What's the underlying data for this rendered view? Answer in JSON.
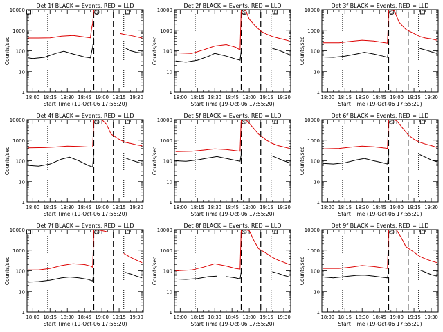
{
  "figure": {
    "colors": {
      "events": "#000000",
      "lld": "#dd0000",
      "axes": "#000000",
      "background": "#ffffff"
    }
  },
  "chart_data": [
    {
      "type": "line",
      "title": "Det 1f BLACK = Events, RED = LLD",
      "xlabel": "Start Time (19-Oct-06 17:55:20)",
      "ylabel": "Counts/sec",
      "yscale": "log",
      "ylim": [
        1,
        10000
      ],
      "xlim": [
        "17:55",
        "19:36"
      ],
      "x_ticks": [
        "18:00",
        "18:15",
        "18:30",
        "18:45",
        "19:00",
        "19:15",
        "19:30"
      ],
      "y_ticks": [
        "1",
        "10",
        "100",
        "1000",
        "10000"
      ],
      "markers_top": [
        "E",
        "S",
        "E"
      ],
      "dotted_vlines": [
        "18:13",
        "19:19"
      ],
      "dashed_vlines": [
        "18:53",
        "19:10"
      ],
      "series": [
        {
          "x": [
            "17:56",
            "18:05",
            "18:15",
            "18:25",
            "18:35",
            "18:45",
            "18:50",
            "18:51",
            "18:52",
            "18:53",
            "18:54",
            "19:03",
            "19:04",
            "19:07",
            "19:12",
            "19:16",
            "19:20",
            "19:25",
            "19:30",
            "19:35"
          ],
          "values": [
            420,
            420,
            430,
            520,
            560,
            470,
            430,
            1100,
            2200,
            9500,
            9500,
            null,
            null,
            null,
            null,
            700,
            620,
            560,
            480,
            420
          ]
        },
        {
          "x": [
            "17:56",
            "18:00",
            "18:10",
            "18:20",
            "18:27",
            "18:35",
            "18:45",
            "18:50",
            "18:51",
            "18:52",
            "18:53",
            "18:54",
            "18:56",
            "19:19",
            "19:20",
            "19:25",
            "19:30",
            "19:35"
          ],
          "values": [
            45,
            42,
            48,
            75,
            95,
            70,
            50,
            45,
            80,
            150,
            430,
            null,
            null,
            null,
            140,
            100,
            85,
            78
          ]
        }
      ]
    },
    {
      "type": "line",
      "title": "Det 2f BLACK = Events, RED = LLD",
      "xlabel": "Start Time (19-Oct-06 17:55:20)",
      "ylabel": "Counts/sec",
      "yscale": "log",
      "ylim": [
        1,
        10000
      ],
      "xlim": [
        "17:55",
        "19:36"
      ],
      "x_ticks": [
        "18:00",
        "18:15",
        "18:30",
        "18:45",
        "19:00",
        "19:15",
        "19:30"
      ],
      "y_ticks": [
        "1",
        "10",
        "100",
        "1000",
        "10000"
      ],
      "markers_top": [
        "S",
        "E"
      ],
      "dotted_vlines": [
        "18:13",
        "19:19"
      ],
      "dashed_vlines": [
        "18:53",
        "19:10"
      ],
      "series": [
        {
          "x": [
            "17:56",
            "18:10",
            "18:20",
            "18:30",
            "18:40",
            "18:48",
            "18:52",
            "18:53",
            "18:54",
            "18:57",
            "19:00",
            "19:05",
            "19:10",
            "19:15",
            "19:20",
            "19:25",
            "19:30",
            "19:35"
          ],
          "values": [
            80,
            75,
            110,
            170,
            200,
            150,
            110,
            10000,
            10000,
            9000,
            3500,
            1700,
            900,
            650,
            500,
            420,
            360,
            300
          ]
        },
        {
          "x": [
            "17:56",
            "18:05",
            "18:15",
            "18:25",
            "18:30",
            "18:40",
            "18:48",
            "18:52",
            "18:53",
            "18:54",
            "19:19",
            "19:20",
            "19:25",
            "19:30",
            "19:35"
          ],
          "values": [
            32,
            28,
            35,
            55,
            75,
            55,
            40,
            35,
            100,
            null,
            null,
            130,
            110,
            85,
            65
          ]
        }
      ]
    },
    {
      "type": "line",
      "title": "Det 3f BLACK = Events, RED = LLD",
      "xlabel": "Start Time (19-Oct-06 17:55:20)",
      "ylabel": "Counts/sec",
      "yscale": "log",
      "ylim": [
        1,
        10000
      ],
      "xlim": [
        "17:55",
        "19:36"
      ],
      "x_ticks": [
        "18:00",
        "18:15",
        "18:30",
        "18:45",
        "19:00",
        "19:15",
        "19:30"
      ],
      "y_ticks": [
        "1",
        "10",
        "100",
        "1000",
        "10000"
      ],
      "markers_top": [
        "S",
        "E"
      ],
      "dotted_vlines": [
        "18:13",
        "19:19"
      ],
      "dashed_vlines": [
        "18:53",
        "19:10"
      ],
      "series": [
        {
          "x": [
            "17:56",
            "18:10",
            "18:20",
            "18:30",
            "18:40",
            "18:48",
            "18:52",
            "18:53",
            "18:54",
            "18:58",
            "19:02",
            "19:08",
            "19:15",
            "19:20",
            "19:25",
            "19:30",
            "19:35"
          ],
          "values": [
            250,
            250,
            290,
            330,
            300,
            260,
            240,
            10000,
            10000,
            9000,
            2500,
            1100,
            700,
            500,
            420,
            380,
            330
          ]
        },
        {
          "x": [
            "17:56",
            "18:05",
            "18:15",
            "18:25",
            "18:32",
            "18:40",
            "18:48",
            "18:52",
            "18:53",
            "18:54",
            "19:19",
            "19:20",
            "19:25",
            "19:30",
            "19:35"
          ],
          "values": [
            50,
            48,
            55,
            70,
            85,
            70,
            55,
            48,
            130,
            null,
            null,
            130,
            110,
            90,
            75
          ]
        }
      ]
    },
    {
      "type": "line",
      "title": "Det 4f BLACK = Events, RED = LLD",
      "xlabel": "Start Time (19-Oct-06 17:55:20)",
      "ylabel": "Counts/sec",
      "yscale": "log",
      "ylim": [
        1,
        10000
      ],
      "xlim": [
        "17:55",
        "19:36"
      ],
      "x_ticks": [
        "18:00",
        "18:15",
        "18:30",
        "18:45",
        "19:00",
        "19:15",
        "19:30"
      ],
      "y_ticks": [
        "1",
        "10",
        "100",
        "1000",
        "10000"
      ],
      "markers_top": [
        "S",
        "E"
      ],
      "dotted_vlines": [
        "18:13",
        "19:19"
      ],
      "dashed_vlines": [
        "18:53",
        "19:10"
      ],
      "series": [
        {
          "x": [
            "17:56",
            "18:10",
            "18:20",
            "18:30",
            "18:40",
            "18:48",
            "18:52",
            "18:53",
            "18:56",
            "19:00",
            "19:04",
            "19:08",
            "19:15",
            "19:20",
            "19:25",
            "19:30",
            "19:35"
          ],
          "values": [
            430,
            440,
            470,
            520,
            500,
            470,
            470,
            9500,
            10000,
            10000,
            6000,
            2000,
            1100,
            800,
            700,
            600,
            540
          ]
        },
        {
          "x": [
            "17:56",
            "18:05",
            "18:15",
            "18:25",
            "18:32",
            "18:40",
            "18:48",
            "18:52",
            "18:53",
            "18:54",
            "19:19",
            "19:20",
            "19:25",
            "19:30",
            "19:35"
          ],
          "values": [
            60,
            55,
            70,
            120,
            150,
            100,
            60,
            50,
            300,
            null,
            null,
            140,
            110,
            90,
            75
          ]
        }
      ]
    },
    {
      "type": "line",
      "title": "Det 5f BLACK = Events, RED = LLD",
      "xlabel": "Start Time (19-Oct-06 17:55:20)",
      "ylabel": "Counts/sec",
      "yscale": "log",
      "ylim": [
        1,
        10000
      ],
      "xlim": [
        "17:55",
        "19:36"
      ],
      "x_ticks": [
        "18:00",
        "18:15",
        "18:30",
        "18:45",
        "19:00",
        "19:15",
        "19:30"
      ],
      "y_ticks": [
        "1",
        "10",
        "100",
        "1000",
        "10000"
      ],
      "markers_top": [
        "S",
        "E"
      ],
      "dotted_vlines": [
        "18:13",
        "19:19"
      ],
      "dashed_vlines": [
        "18:53",
        "19:10"
      ],
      "series": [
        {
          "x": [
            "17:56",
            "18:10",
            "18:20",
            "18:30",
            "18:40",
            "18:48",
            "18:52",
            "18:53",
            "18:55",
            "18:58",
            "19:02",
            "19:08",
            "19:15",
            "19:20",
            "19:25",
            "19:30",
            "19:35"
          ],
          "values": [
            280,
            290,
            330,
            380,
            350,
            310,
            290,
            10000,
            10000,
            9000,
            5000,
            2000,
            1000,
            700,
            550,
            470,
            400
          ]
        },
        {
          "x": [
            "17:56",
            "18:05",
            "18:15",
            "18:25",
            "18:32",
            "18:40",
            "18:48",
            "18:52",
            "18:53",
            "18:54",
            "19:19",
            "19:20",
            "19:25",
            "19:30",
            "19:35"
          ],
          "values": [
            100,
            95,
            110,
            140,
            160,
            130,
            105,
            95,
            200,
            null,
            null,
            170,
            130,
            100,
            80
          ]
        }
      ]
    },
    {
      "type": "line",
      "title": "Det 6f BLACK = Events, RED = LLD",
      "xlabel": "Start Time (19-Oct-06 17:55:20)",
      "ylabel": "Counts/sec",
      "yscale": "log",
      "ylim": [
        1,
        10000
      ],
      "xlim": [
        "17:55",
        "19:36"
      ],
      "x_ticks": [
        "18:00",
        "18:15",
        "18:30",
        "18:45",
        "19:00",
        "19:15",
        "19:30"
      ],
      "y_ticks": [
        "1",
        "10",
        "100",
        "1000",
        "10000"
      ],
      "markers_top": [
        "S",
        "E"
      ],
      "dotted_vlines": [
        "18:13",
        "19:19"
      ],
      "dashed_vlines": [
        "18:53",
        "19:10"
      ],
      "series": [
        {
          "x": [
            "17:56",
            "18:10",
            "18:20",
            "18:30",
            "18:40",
            "18:48",
            "18:52",
            "18:53",
            "18:56",
            "19:00",
            "19:05",
            "19:10",
            "19:15",
            "19:20",
            "19:25",
            "19:30",
            "19:35"
          ],
          "values": [
            380,
            400,
            460,
            520,
            480,
            430,
            400,
            10000,
            10000,
            9000,
            4000,
            1800,
            1100,
            800,
            650,
            550,
            450
          ]
        },
        {
          "x": [
            "17:56",
            "18:05",
            "18:15",
            "18:25",
            "18:32",
            "18:40",
            "18:48",
            "18:52",
            "18:53",
            "18:54",
            "19:19",
            "19:20",
            "19:25",
            "19:30",
            "19:35"
          ],
          "values": [
            75,
            70,
            80,
            110,
            130,
            100,
            80,
            70,
            250,
            null,
            null,
            200,
            150,
            110,
            90
          ]
        }
      ]
    },
    {
      "type": "line",
      "title": "Det 7f BLACK = Events, RED = LLD",
      "xlabel": "Start Time (19-Oct-06 17:55:20)",
      "ylabel": "Counts/sec",
      "yscale": "log",
      "ylim": [
        1,
        10000
      ],
      "xlim": [
        "17:55",
        "19:36"
      ],
      "x_ticks": [
        "18:00",
        "18:15",
        "18:30",
        "18:45",
        "19:00",
        "19:15",
        "19:30"
      ],
      "y_ticks": [
        "1",
        "10",
        "100",
        "1000",
        "10000"
      ],
      "markers_top": [
        "E",
        "S",
        "E"
      ],
      "dotted_vlines": [
        "18:13",
        "19:19"
      ],
      "dashed_vlines": [
        "18:53",
        "19:10"
      ],
      "series": [
        {
          "x": [
            "17:56",
            "18:05",
            "18:15",
            "18:25",
            "18:35",
            "18:45",
            "18:50",
            "18:52",
            "18:53",
            "18:54",
            "19:00",
            "19:04",
            "19:05",
            "19:17",
            "19:19",
            "19:25",
            "19:30",
            "19:35"
          ],
          "values": [
            110,
            110,
            130,
            180,
            220,
            200,
            170,
            150,
            10000,
            10000,
            9000,
            8000,
            null,
            null,
            700,
            450,
            330,
            250
          ]
        },
        {
          "x": [
            "17:56",
            "18:05",
            "18:15",
            "18:25",
            "18:32",
            "18:40",
            "18:48",
            "18:52",
            "18:53",
            "18:54",
            "19:19",
            "19:20",
            "19:25",
            "19:30",
            "19:35"
          ],
          "values": [
            28,
            30,
            35,
            45,
            50,
            45,
            38,
            32,
            90,
            null,
            null,
            85,
            70,
            55,
            45
          ]
        }
      ]
    },
    {
      "type": "line",
      "title": "Det 8f BLACK = Events, RED = LLD",
      "xlabel": "Start Time (19-Oct-06 17:55:20)",
      "ylabel": "Counts/sec",
      "yscale": "log",
      "ylim": [
        1,
        10000
      ],
      "xlim": [
        "17:55",
        "19:36"
      ],
      "x_ticks": [
        "18:00",
        "18:15",
        "18:30",
        "18:45",
        "19:00",
        "19:15",
        "19:30"
      ],
      "y_ticks": [
        "1",
        "10",
        "100",
        "1000",
        "10000"
      ],
      "markers_top": [
        "S",
        "E"
      ],
      "dotted_vlines": [
        "18:13",
        "19:19"
      ],
      "dashed_vlines": [
        "18:53",
        "19:10"
      ],
      "series": [
        {
          "x": [
            "17:56",
            "18:10",
            "18:20",
            "18:30",
            "18:40",
            "18:48",
            "18:52",
            "18:53",
            "18:56",
            "19:00",
            "19:04",
            "19:08",
            "19:15",
            "19:20",
            "19:25",
            "19:30",
            "19:35"
          ],
          "values": [
            100,
            110,
            150,
            220,
            170,
            130,
            120,
            10000,
            10000,
            9000,
            3000,
            1200,
            700,
            450,
            330,
            260,
            200
          ]
        },
        {
          "x": [
            "17:56",
            "18:05",
            "18:15",
            "18:25",
            "18:32",
            "18:33",
            "18:38",
            "18:40",
            "18:48",
            "18:52",
            "18:53",
            "18:54",
            "19:19",
            "19:20",
            "19:25",
            "19:30",
            "19:35"
          ],
          "values": [
            40,
            38,
            42,
            52,
            55,
            null,
            null,
            52,
            45,
            40,
            90,
            null,
            null,
            90,
            75,
            60,
            50
          ]
        }
      ]
    },
    {
      "type": "line",
      "title": "Det 9f BLACK = Events, RED = LLD",
      "xlabel": "Start Time (19-Oct-06 17:55:20)",
      "ylabel": "Counts/sec",
      "yscale": "log",
      "ylim": [
        1,
        10000
      ],
      "xlim": [
        "17:55",
        "19:36"
      ],
      "x_ticks": [
        "18:00",
        "18:15",
        "18:30",
        "18:45",
        "19:00",
        "19:15",
        "19:30"
      ],
      "y_ticks": [
        "1",
        "10",
        "100",
        "1000",
        "10000"
      ],
      "markers_top": [
        "S",
        "E"
      ],
      "dotted_vlines": [
        "18:13",
        "19:19"
      ],
      "dashed_vlines": [
        "18:53",
        "19:10"
      ],
      "series": [
        {
          "x": [
            "17:56",
            "18:10",
            "18:20",
            "18:30",
            "18:40",
            "18:48",
            "18:52",
            "18:53",
            "18:56",
            "19:00",
            "19:04",
            "19:08",
            "19:15",
            "19:20",
            "19:25",
            "19:30",
            "19:35"
          ],
          "values": [
            130,
            130,
            150,
            180,
            160,
            140,
            130,
            10000,
            10000,
            9500,
            4000,
            1500,
            800,
            500,
            380,
            300,
            250
          ]
        },
        {
          "x": [
            "17:56",
            "18:05",
            "18:15",
            "18:25",
            "18:32",
            "18:40",
            "18:48",
            "18:52",
            "18:53",
            "18:54",
            "19:19",
            "19:20",
            "19:25",
            "19:30",
            "19:35"
          ],
          "values": [
            50,
            45,
            52,
            60,
            62,
            55,
            48,
            45,
            110,
            null,
            null,
            110,
            85,
            65,
            55
          ]
        }
      ]
    }
  ]
}
